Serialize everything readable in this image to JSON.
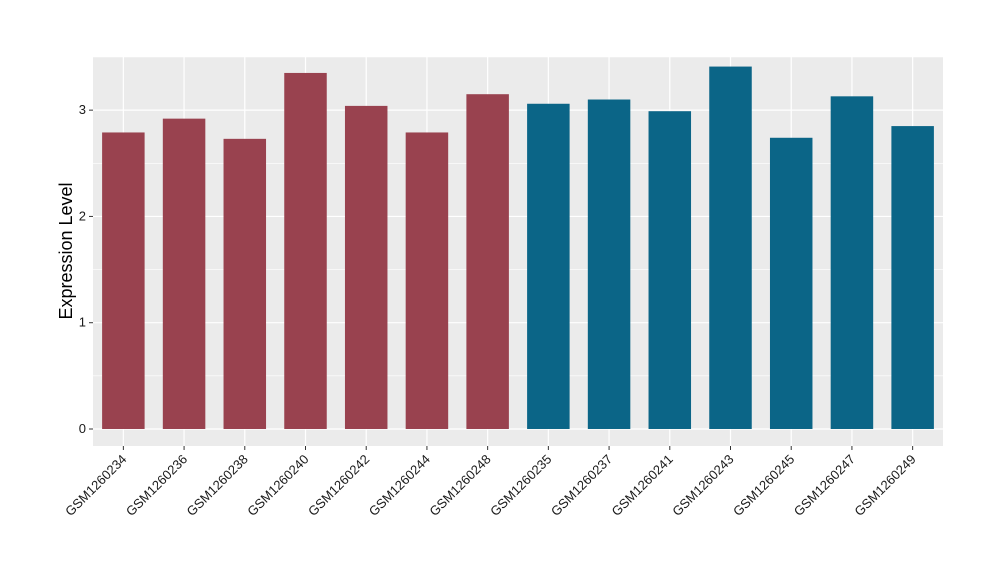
{
  "chart_data": {
    "type": "bar",
    "title": "",
    "xlabel": "",
    "ylabel": "Expression Level",
    "ylim": [
      -0.16,
      3.5
    ],
    "yticks": [
      0,
      1,
      2,
      3
    ],
    "grid": true,
    "background": "#ebebeb",
    "categories": [
      "GSM1260234",
      "GSM1260236",
      "GSM1260238",
      "GSM1260240",
      "GSM1260242",
      "GSM1260244",
      "GSM1260248",
      "GSM1260235",
      "GSM1260237",
      "GSM1260241",
      "GSM1260243",
      "GSM1260245",
      "GSM1260247",
      "GSM1260249"
    ],
    "values": [
      2.79,
      2.92,
      2.73,
      3.35,
      3.04,
      2.79,
      3.15,
      3.06,
      3.1,
      2.99,
      3.41,
      2.74,
      3.13,
      2.85
    ],
    "colors": [
      "#99424f",
      "#99424f",
      "#99424f",
      "#99424f",
      "#99424f",
      "#99424f",
      "#99424f",
      "#0b6587",
      "#0b6587",
      "#0b6587",
      "#0b6587",
      "#0b6587",
      "#0b6587",
      "#0b6587"
    ]
  }
}
